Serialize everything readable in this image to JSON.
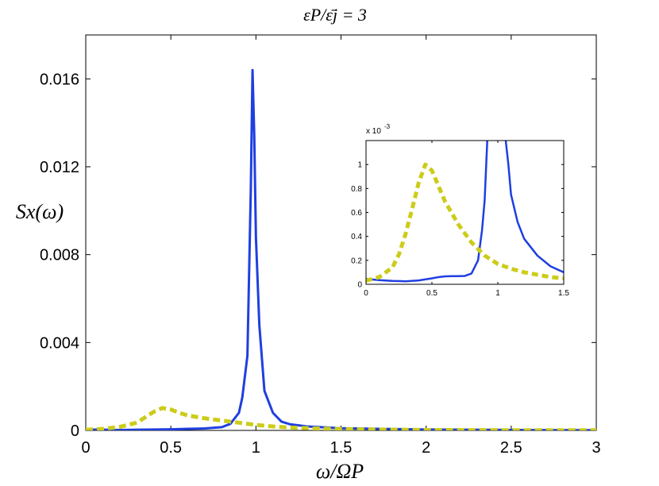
{
  "chart_data": [
    {
      "type": "line",
      "title": "εP/ε̄j = 3",
      "xlabel": "ω/ΩP",
      "ylabel": "Sx(ω)",
      "xlim": [
        0,
        3
      ],
      "ylim": [
        0,
        0.018
      ],
      "x_ticks": [
        0,
        0.5,
        1,
        1.5,
        2,
        2.5,
        3
      ],
      "x_tick_labels": [
        "0",
        "0.5",
        "1",
        "1.5",
        "2",
        "2.5",
        "3"
      ],
      "y_ticks": [
        0,
        0.004,
        0.008,
        0.012,
        0.016
      ],
      "y_tick_labels": [
        "0",
        "0.004",
        "0.008",
        "0.012",
        "0.016"
      ],
      "grid": false,
      "series": [
        {
          "color": "#1f3fe0",
          "style": "solid",
          "x": [
            0,
            0.1,
            0.2,
            0.3,
            0.4,
            0.5,
            0.6,
            0.7,
            0.8,
            0.85,
            0.9,
            0.92,
            0.95,
            0.97,
            0.98,
            0.99,
            1.0,
            1.02,
            1.05,
            1.1,
            1.15,
            1.2,
            1.3,
            1.5,
            2.0,
            2.5,
            3.0
          ],
          "y": [
            4e-05,
            3e-05,
            2e-05,
            3e-05,
            4e-05,
            5e-05,
            7e-05,
            9e-05,
            0.00015,
            0.0003,
            0.0008,
            0.0015,
            0.0034,
            0.011,
            0.0164,
            0.0135,
            0.0088,
            0.0048,
            0.0018,
            0.0008,
            0.0004,
            0.00028,
            0.00018,
            0.0001,
            4e-05,
            2e-05,
            1e-05
          ]
        },
        {
          "color": "#cccc1a",
          "style": "dashed",
          "x": [
            0,
            0.1,
            0.2,
            0.3,
            0.35,
            0.4,
            0.45,
            0.5,
            0.55,
            0.6,
            0.7,
            0.8,
            0.9,
            1.0,
            1.1,
            1.2,
            1.4,
            1.6,
            2.0,
            2.5,
            3.0
          ],
          "y": [
            3e-05,
            7e-05,
            0.00016,
            0.00035,
            0.0006,
            0.00085,
            0.00102,
            0.00095,
            0.0008,
            0.00068,
            0.00055,
            0.00045,
            0.00035,
            0.00025,
            0.00018,
            0.00013,
            8e-05,
            5e-05,
            2e-05,
            1e-05,
            1e-05
          ]
        }
      ]
    },
    {
      "type": "line",
      "title": "",
      "xlabel": "",
      "ylabel": "",
      "scale_label": "x 10",
      "scale_exponent": "-3",
      "xlim": [
        0,
        1.5
      ],
      "ylim": [
        0,
        1.2
      ],
      "x_ticks": [
        0,
        0.5,
        1,
        1.5
      ],
      "x_tick_labels": [
        "0",
        "0.5",
        "1",
        "1.5"
      ],
      "y_ticks": [
        0,
        0.2,
        0.4,
        0.6,
        0.8,
        1
      ],
      "y_tick_labels": [
        "0",
        "0.2",
        "0.4",
        "0.6",
        "0.8",
        "1"
      ],
      "grid": false,
      "series": [
        {
          "color": "#1f3fe0",
          "style": "solid",
          "x": [
            0,
            0.1,
            0.2,
            0.3,
            0.4,
            0.5,
            0.55,
            0.6,
            0.65,
            0.7,
            0.75,
            0.8,
            0.85,
            0.88,
            0.9,
            0.92,
            0.95,
            1.05,
            1.08,
            1.1,
            1.15,
            1.2,
            1.3,
            1.4,
            1.5
          ],
          "y": [
            0.045,
            0.035,
            0.028,
            0.025,
            0.032,
            0.05,
            0.06,
            0.066,
            0.068,
            0.068,
            0.07,
            0.09,
            0.2,
            0.45,
            0.7,
            1.2,
            1.3,
            1.3,
            1.0,
            0.75,
            0.52,
            0.38,
            0.24,
            0.15,
            0.1
          ]
        },
        {
          "color": "#cccc1a",
          "style": "dashed",
          "x": [
            0,
            0.1,
            0.2,
            0.25,
            0.3,
            0.35,
            0.4,
            0.45,
            0.5,
            0.55,
            0.6,
            0.7,
            0.8,
            0.9,
            1.0,
            1.1,
            1.2,
            1.3,
            1.4,
            1.5
          ],
          "y": [
            0.03,
            0.06,
            0.14,
            0.25,
            0.42,
            0.63,
            0.85,
            1.0,
            0.95,
            0.82,
            0.69,
            0.5,
            0.35,
            0.24,
            0.17,
            0.13,
            0.1,
            0.08,
            0.06,
            0.05
          ]
        }
      ]
    }
  ]
}
